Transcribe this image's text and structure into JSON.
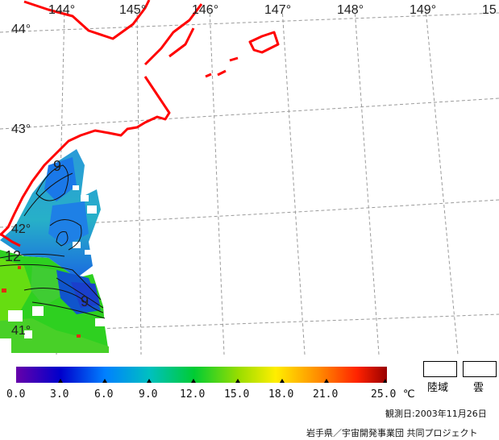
{
  "map": {
    "longitude_labels": [
      "144°",
      "145°",
      "146°",
      "147°",
      "148°",
      "149°",
      "15"
    ],
    "latitude_labels": [
      "44°",
      "43°",
      "42°",
      "41°"
    ],
    "contour_labels": [
      "9",
      "12",
      "9"
    ],
    "coast_color": "#ff0000",
    "grid_color": "#9a9a9a"
  },
  "colorbar": {
    "tick_labels": [
      "0.0",
      "3.0",
      "6.0",
      "9.0",
      "12.0",
      "15.0",
      "18.0",
      "21.0",
      "25.0"
    ],
    "unit": "℃",
    "colors": [
      "#6600aa",
      "#0000cc",
      "#0080ff",
      "#00c0c0",
      "#00cc33",
      "#99dd00",
      "#ffee00",
      "#ff8800",
      "#ff2200",
      "#990000"
    ]
  },
  "legend": {
    "land_label": "陸域",
    "cloud_label": "雲"
  },
  "footer": {
    "observation_date": "観測日:2003年11月26日",
    "credit": "岩手県／宇宙開発事業団 共同プロジェクト"
  }
}
